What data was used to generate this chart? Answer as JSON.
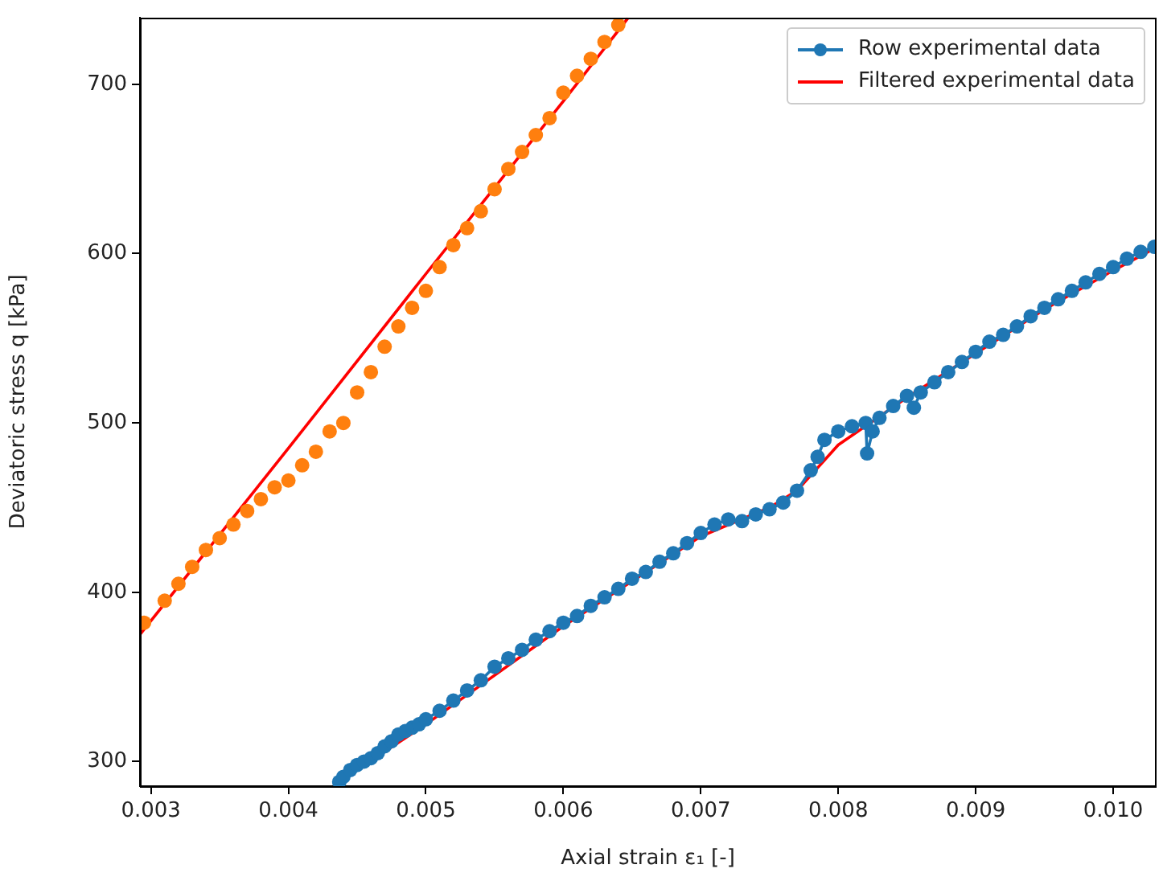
{
  "chart_data": {
    "type": "scatter",
    "xlabel": "Axial strain ε₁ [-]",
    "ylabel": "Deviatoric stress q [kPa]",
    "xlim": [
      0.00292,
      0.01031
    ],
    "ylim": [
      285.5,
      739.5
    ],
    "xticks": [
      0.003,
      0.004,
      0.005,
      0.006,
      0.007,
      0.008,
      0.009,
      {
        "value": 0.01,
        "label": "0.010"
      }
    ],
    "yticks": [
      300,
      400,
      500,
      600,
      700
    ],
    "grid": false,
    "legend": "top right",
    "marker": "circle",
    "series": [
      {
        "color": "#ff7f0e",
        "x": [
          0.00295,
          0.0031,
          0.0032,
          0.0033,
          0.0034,
          0.0035,
          0.0036,
          0.0037,
          0.0038,
          0.0039,
          0.004,
          0.0041,
          0.0042,
          0.0043,
          0.0044,
          0.0045,
          0.0046,
          0.0047,
          0.0048,
          0.0049,
          0.005,
          0.0051,
          0.0052,
          0.0053,
          0.0054,
          0.0055,
          0.0056,
          0.0057,
          0.0058,
          0.0059,
          0.006,
          0.0061,
          0.0062,
          0.0063,
          0.0064
        ],
        "values": [
          382,
          395,
          405,
          415,
          425,
          432,
          440,
          448,
          455,
          462,
          466,
          475,
          483,
          495,
          500,
          518,
          530,
          545,
          557,
          568,
          578,
          592,
          605,
          615,
          625,
          638,
          650,
          660,
          670,
          680,
          695,
          705,
          715,
          725,
          735
        ]
      },
      {
        "type": "line",
        "color": "#ff0000",
        "marker": "none",
        "x": [
          0.00292,
          0.004,
          0.005,
          0.006,
          0.00647
        ],
        "values": [
          375,
          485,
          588,
          690,
          739
        ]
      },
      {
        "type": "line",
        "name": "Row experimental data",
        "color": "#1f77b4",
        "marker": "circle",
        "x": [
          0.00437,
          0.0044,
          0.00445,
          0.0045,
          0.00455,
          0.0046,
          0.00465,
          0.0047,
          0.00475,
          0.0048,
          0.00485,
          0.0049,
          0.00495,
          0.005,
          0.0051,
          0.0052,
          0.0053,
          0.0054,
          0.0055,
          0.0056,
          0.0057,
          0.0058,
          0.0059,
          0.006,
          0.0061,
          0.0062,
          0.0063,
          0.0064,
          0.0065,
          0.0066,
          0.0067,
          0.0068,
          0.0069,
          0.007,
          0.0071,
          0.0072,
          0.0073,
          0.0074,
          0.0075,
          0.0076,
          0.0077,
          0.0078,
          0.00785,
          0.0079,
          0.008,
          0.0081,
          0.0082,
          0.00821,
          0.00825,
          0.0083,
          0.0084,
          0.0085,
          0.00855,
          0.0086,
          0.0087,
          0.0088,
          0.0089,
          0.009,
          0.0091,
          0.0092,
          0.0093,
          0.0094,
          0.0095,
          0.0096,
          0.0097,
          0.0098,
          0.0099,
          0.01,
          0.0101,
          0.0102,
          0.0103
        ],
        "values": [
          288,
          291,
          295,
          298,
          300,
          302,
          305,
          309,
          312,
          316,
          318,
          320,
          322,
          325,
          330,
          336,
          342,
          348,
          356,
          361,
          366,
          372,
          377,
          382,
          386,
          392,
          397,
          402,
          408,
          412,
          418,
          423,
          429,
          435,
          440,
          443,
          442,
          446,
          449,
          453,
          460,
          472,
          480,
          490,
          495,
          498,
          500,
          482,
          495,
          503,
          510,
          516,
          509,
          518,
          524,
          530,
          536,
          542,
          548,
          552,
          557,
          563,
          568,
          573,
          578,
          583,
          588,
          592,
          597,
          601,
          604
        ]
      },
      {
        "type": "line",
        "name": "Filtered experimental data",
        "color": "#ff0000",
        "marker": "none",
        "x": [
          0.00433,
          0.005,
          0.006,
          0.007,
          0.0075,
          0.0077,
          0.008,
          0.0085,
          0.009,
          0.0095,
          0.01,
          0.0103
        ],
        "values": [
          286,
          322,
          380,
          433,
          450,
          460,
          487,
          515,
          541,
          567,
          590,
          603
        ]
      }
    ]
  }
}
